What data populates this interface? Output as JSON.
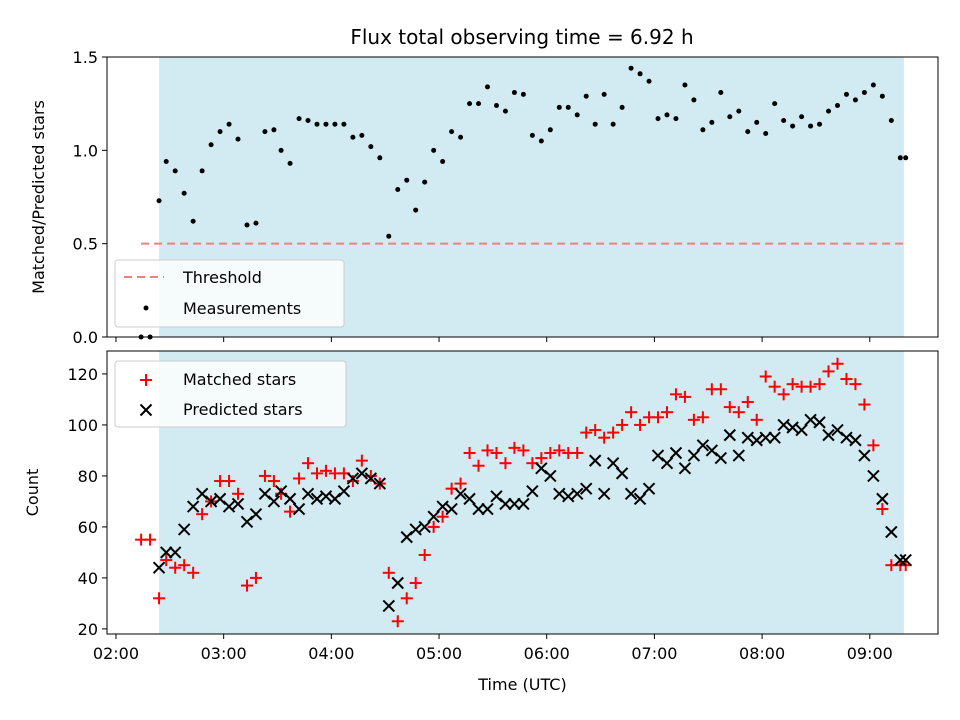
{
  "chart_data": [
    {
      "type": "scatter",
      "title": "Flux total observing time = 6.92 h",
      "xlabel": "",
      "ylabel": "Matched/Predicted stars",
      "ylim": [
        0,
        1.5
      ],
      "yticks": [
        0.0,
        0.5,
        1.0,
        1.5
      ],
      "ytick_labels": [
        "0.0",
        "0.5",
        "1.0",
        "1.5"
      ],
      "span": {
        "from": 144,
        "to": 559,
        "color": "#add8e6"
      },
      "threshold": {
        "name": "Threshold",
        "value": 0.5,
        "from": 134,
        "to": 560,
        "color": "#f08080"
      },
      "legend": {
        "placement": "lower-left",
        "entries": [
          "Threshold",
          "Measurements"
        ]
      },
      "series": [
        {
          "name": "Measurements",
          "color": "#000000",
          "x": [
            134,
            139,
            144,
            148,
            153,
            158,
            163,
            168,
            173,
            178,
            183,
            188,
            193,
            198,
            203,
            208,
            212,
            217,
            222,
            227,
            232,
            237,
            242,
            247,
            252,
            257,
            262,
            267,
            272,
            277,
            282,
            287,
            292,
            297,
            302,
            307,
            312,
            317,
            322,
            327,
            332,
            337,
            342,
            347,
            352,
            357,
            362,
            367,
            372,
            377,
            382,
            387,
            392,
            397,
            402,
            407,
            412,
            417,
            422,
            427,
            432,
            437,
            442,
            447,
            452,
            457,
            462,
            467,
            472,
            477,
            482,
            487,
            492,
            497,
            502,
            507,
            512,
            517,
            522,
            527,
            532,
            537,
            542,
            547,
            552,
            557,
            560
          ],
          "y": [
            0.0,
            0.0,
            0.73,
            0.94,
            0.89,
            0.77,
            0.62,
            0.89,
            1.03,
            1.1,
            1.14,
            1.06,
            0.6,
            0.61,
            1.1,
            1.11,
            1.0,
            0.93,
            1.17,
            1.16,
            1.14,
            1.14,
            1.14,
            1.14,
            1.07,
            1.08,
            1.02,
            0.96,
            0.54,
            0.79,
            0.84,
            0.68,
            0.83,
            1.0,
            0.94,
            1.1,
            1.07,
            1.25,
            1.25,
            1.34,
            1.24,
            1.21,
            1.31,
            1.3,
            1.08,
            1.05,
            1.11,
            1.23,
            1.23,
            1.19,
            1.29,
            1.14,
            1.3,
            1.14,
            1.23,
            1.44,
            1.41,
            1.37,
            1.17,
            1.19,
            1.17,
            1.35,
            1.27,
            1.11,
            1.15,
            1.31,
            1.18,
            1.21,
            1.1,
            1.15,
            1.09,
            1.25,
            1.16,
            1.13,
            1.18,
            1.13,
            1.14,
            1.21,
            1.24,
            1.3,
            1.27,
            1.31,
            1.35,
            1.29,
            1.16,
            0.96,
            0.96
          ]
        }
      ]
    },
    {
      "type": "scatter",
      "title": "",
      "xlabel": "Time (UTC)",
      "ylabel": "Count",
      "ylim": [
        18,
        129
      ],
      "yticks": [
        20,
        40,
        60,
        80,
        100,
        120
      ],
      "ytick_labels": [
        "20",
        "40",
        "60",
        "80",
        "100",
        "120"
      ],
      "xlim": [
        115,
        578
      ],
      "xticks": [
        120,
        180,
        240,
        300,
        360,
        420,
        480,
        540
      ],
      "xtick_labels": [
        "02:00",
        "03:00",
        "04:00",
        "05:00",
        "06:00",
        "07:00",
        "08:00",
        "09:00"
      ],
      "span": {
        "from": 144,
        "to": 559,
        "color": "#add8e6"
      },
      "legend": {
        "placement": "upper-left",
        "entries": [
          "Matched stars",
          "Predicted stars"
        ]
      },
      "series": [
        {
          "name": "Matched stars",
          "marker": "+",
          "color": "#ff0000",
          "x": [
            134,
            139,
            144,
            148,
            153,
            158,
            163,
            168,
            173,
            178,
            183,
            188,
            193,
            198,
            203,
            208,
            212,
            217,
            222,
            227,
            232,
            237,
            242,
            247,
            252,
            257,
            262,
            267,
            272,
            277,
            282,
            287,
            292,
            297,
            302,
            307,
            312,
            317,
            322,
            327,
            332,
            337,
            342,
            347,
            352,
            357,
            362,
            367,
            372,
            377,
            382,
            387,
            392,
            397,
            402,
            407,
            412,
            417,
            422,
            427,
            432,
            437,
            442,
            447,
            452,
            457,
            462,
            467,
            472,
            477,
            482,
            487,
            492,
            497,
            502,
            507,
            512,
            517,
            522,
            527,
            532,
            537,
            542,
            547,
            552,
            557,
            560
          ],
          "y": [
            55,
            55,
            32,
            47,
            44,
            45,
            42,
            65,
            70,
            78,
            78,
            73,
            37,
            40,
            80,
            78,
            73,
            66,
            79,
            85,
            81,
            82,
            81,
            81,
            78,
            86,
            80,
            77,
            42,
            23,
            32,
            38,
            49,
            60,
            64,
            75,
            77,
            89,
            84,
            90,
            89,
            85,
            91,
            90,
            85,
            87,
            89,
            90,
            89,
            89,
            97,
            98,
            95,
            97,
            100,
            105,
            100,
            103,
            103,
            105,
            112,
            111,
            102,
            103,
            114,
            114,
            107,
            105,
            109,
            102,
            119,
            115,
            112,
            116,
            115,
            115,
            116,
            121,
            124,
            118,
            116,
            108,
            92,
            67,
            45,
            45,
            45
          ],
          "x_note": ""
        },
        {
          "name": "Predicted stars",
          "marker": "x",
          "color": "#000000",
          "x": [
            144,
            148,
            153,
            158,
            163,
            168,
            173,
            178,
            183,
            188,
            193,
            198,
            203,
            208,
            212,
            217,
            222,
            227,
            232,
            237,
            242,
            247,
            252,
            257,
            262,
            267,
            272,
            277,
            282,
            287,
            292,
            297,
            302,
            307,
            312,
            317,
            322,
            327,
            332,
            337,
            342,
            347,
            352,
            357,
            362,
            367,
            372,
            377,
            382,
            387,
            392,
            397,
            402,
            407,
            412,
            417,
            422,
            427,
            432,
            437,
            442,
            447,
            452,
            457,
            462,
            467,
            472,
            477,
            482,
            487,
            492,
            497,
            502,
            507,
            512,
            517,
            522,
            527,
            532,
            537,
            542,
            547,
            552,
            557,
            560
          ],
          "y": [
            44,
            50,
            50,
            59,
            68,
            73,
            70,
            71,
            68,
            69,
            62,
            65,
            73,
            70,
            74,
            71,
            67,
            73,
            71,
            72,
            71,
            74,
            79,
            81,
            79,
            77,
            29,
            38,
            56,
            59,
            60,
            64,
            68,
            67,
            73,
            71,
            67,
            67,
            72,
            69,
            69,
            69,
            74,
            83,
            80,
            73,
            72,
            73,
            75,
            86,
            73,
            85,
            81,
            73,
            71,
            75,
            88,
            85,
            89,
            83,
            88,
            92,
            90,
            87,
            96,
            88,
            95,
            94,
            95,
            95,
            100,
            99,
            98,
            102,
            101,
            96,
            98,
            95,
            94,
            88,
            80,
            71,
            58,
            47,
            47
          ]
        }
      ]
    }
  ]
}
